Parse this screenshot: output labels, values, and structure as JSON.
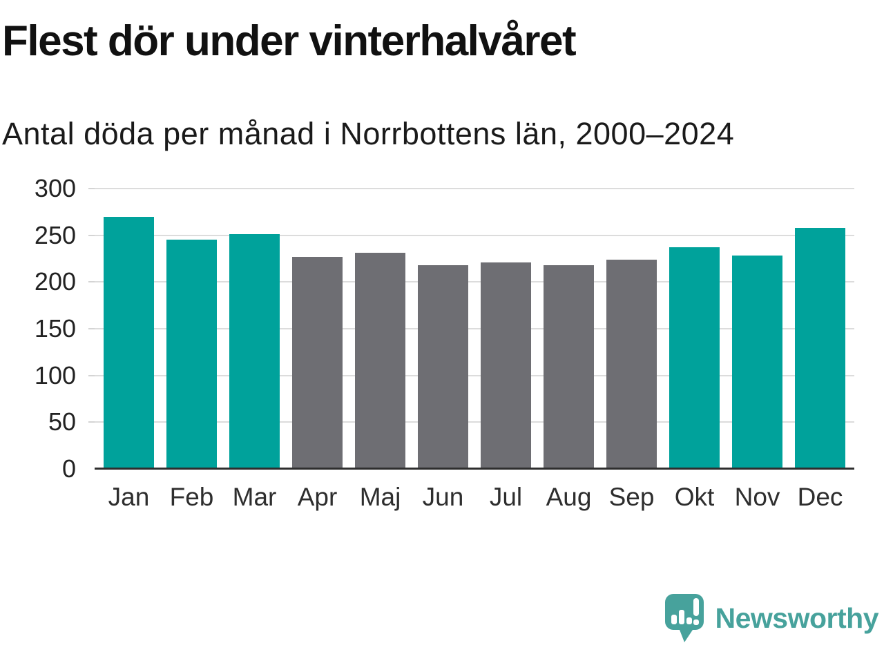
{
  "header": {
    "title": "Flest dör under vinterhalvåret",
    "subtitle": "Antal döda per månad i Norrbottens län, 2000–2024"
  },
  "chart_data": {
    "type": "bar",
    "title": "Flest dör under vinterhalvåret",
    "subtitle": "Antal döda per månad i Norrbottens län, 2000–2024",
    "categories": [
      "Jan",
      "Feb",
      "Mar",
      "Apr",
      "Maj",
      "Jun",
      "Jul",
      "Aug",
      "Sep",
      "Okt",
      "Nov",
      "Dec"
    ],
    "values": [
      270,
      245,
      251,
      227,
      231,
      218,
      221,
      218,
      224,
      237,
      228,
      258
    ],
    "bar_colors": [
      "teal",
      "teal",
      "teal",
      "gray",
      "gray",
      "gray",
      "gray",
      "gray",
      "gray",
      "teal",
      "teal",
      "teal"
    ],
    "xlabel": "",
    "ylabel": "",
    "ylim": [
      0,
      300
    ],
    "yticks": [
      0,
      50,
      100,
      150,
      200,
      250,
      300
    ],
    "grid": true,
    "legend": false
  },
  "colors": {
    "teal": "#00a29b",
    "gray": "#6e6e73",
    "gridline": "#dcdcdc",
    "axis_line": "#2e2e2e",
    "title_text": "#111111",
    "brand_teal": "#47a29c"
  },
  "footer": {
    "brand": "Newsworthy"
  }
}
